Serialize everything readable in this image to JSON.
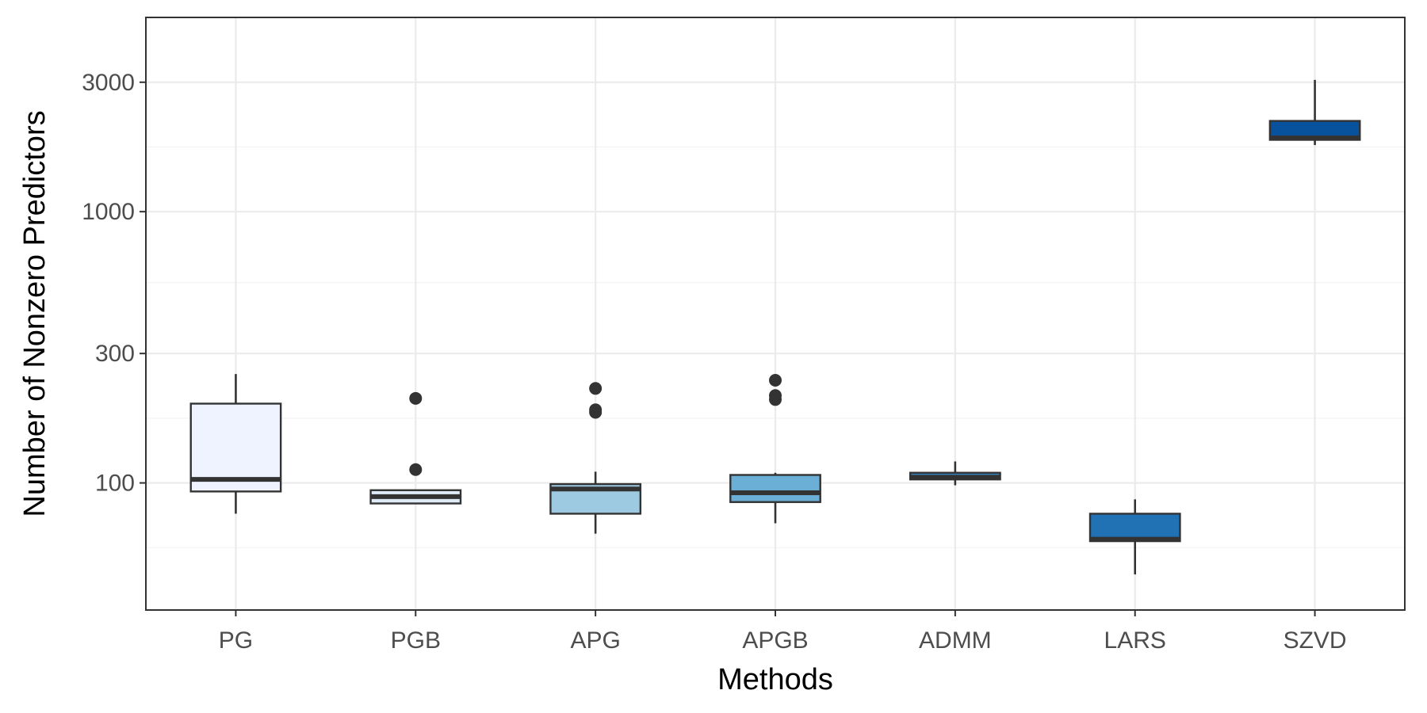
{
  "chart_data": {
    "type": "box",
    "title": "",
    "xlabel": "Methods",
    "ylabel": "Number of Nonzero Predictors",
    "y_scale": "log10",
    "ylim": [
      34,
      5200
    ],
    "y_ticks": [
      100,
      300,
      1000,
      3000
    ],
    "y_tick_labels": [
      "100",
      "300",
      "1000",
      "3000"
    ],
    "grid": true,
    "categories": [
      "PG",
      "PGB",
      "APG",
      "APGB",
      "ADMM",
      "LARS",
      "SZVD"
    ],
    "boxes": [
      {
        "name": "PG",
        "min": 77,
        "q1": 93,
        "median": 103,
        "q3": 196,
        "max": 252,
        "outliers": [],
        "color": "#eff3ff"
      },
      {
        "name": "PGB",
        "min": 84,
        "q1": 84,
        "median": 89,
        "q3": 94,
        "max": 94,
        "outliers": [
          112,
          205
        ],
        "color": "#deebf7"
      },
      {
        "name": "APG",
        "min": 65,
        "q1": 77,
        "median": 95,
        "q3": 99,
        "max": 110,
        "outliers": [
          182,
          186,
          223
        ],
        "color": "#9ecae1"
      },
      {
        "name": "APGB",
        "min": 71,
        "q1": 85,
        "median": 92,
        "q3": 107,
        "max": 109,
        "outliers": [
          203,
          210,
          239
        ],
        "color": "#6baed6"
      },
      {
        "name": "ADMM",
        "min": 98,
        "q1": 103,
        "median": 105,
        "q3": 109,
        "max": 120,
        "outliers": [],
        "color": "#3182bd"
      },
      {
        "name": "LARS",
        "min": 46,
        "q1": 61,
        "median": 62,
        "q3": 77,
        "max": 87,
        "outliers": [],
        "color": "#2171b5"
      },
      {
        "name": "SZVD",
        "min": 1760,
        "q1": 1840,
        "median": 1870,
        "q3": 2160,
        "max": 3060,
        "outliers": [],
        "color": "#08519c"
      }
    ]
  }
}
